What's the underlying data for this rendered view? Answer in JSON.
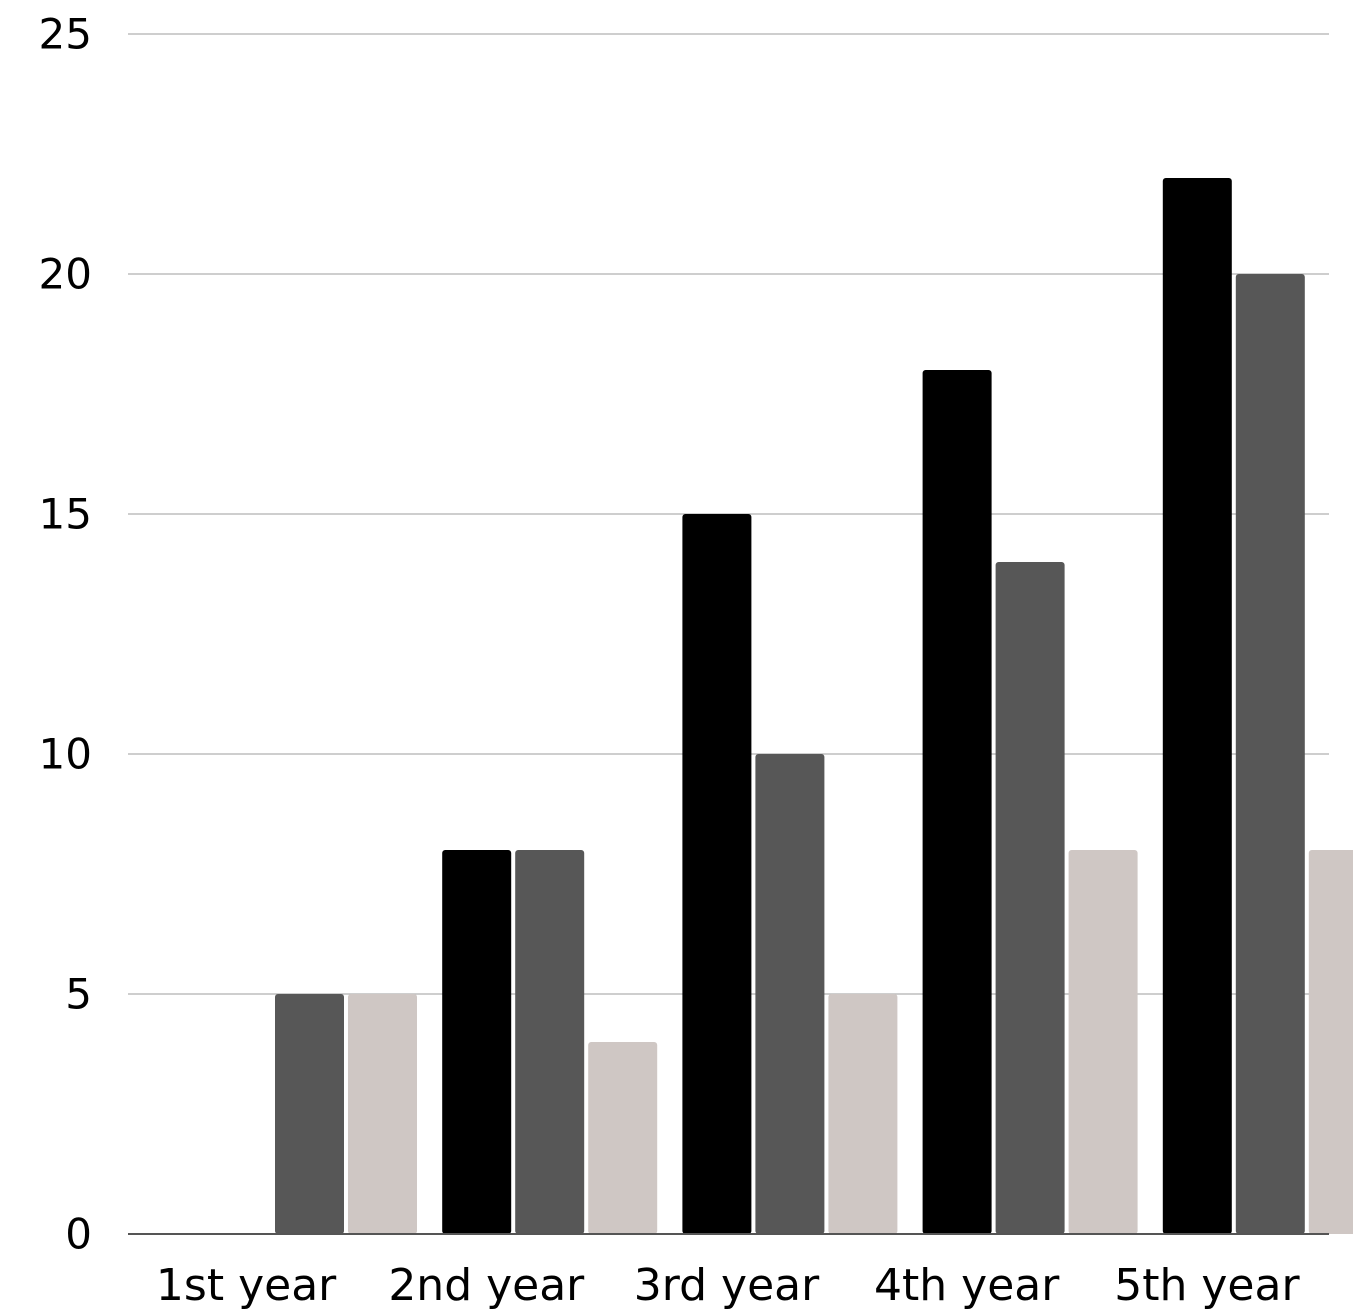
{
  "chart_data": {
    "type": "bar",
    "categories": [
      "1st year",
      "2nd year",
      "3rd year",
      "4th year",
      "5th year"
    ],
    "series": [
      {
        "color": "#000000",
        "values": [
          0,
          8,
          15,
          18,
          22
        ]
      },
      {
        "color": "#575757",
        "values": [
          5,
          8,
          10,
          14,
          20
        ]
      },
      {
        "color": "#cfc7c4",
        "values": [
          5,
          4,
          5,
          8,
          8
        ]
      }
    ],
    "ylim": [
      0,
      25
    ],
    "yticks": [
      "0",
      "5",
      "10",
      "15",
      "20",
      "25"
    ],
    "grid": true,
    "title": "",
    "xlabel": "",
    "ylabel": ""
  }
}
